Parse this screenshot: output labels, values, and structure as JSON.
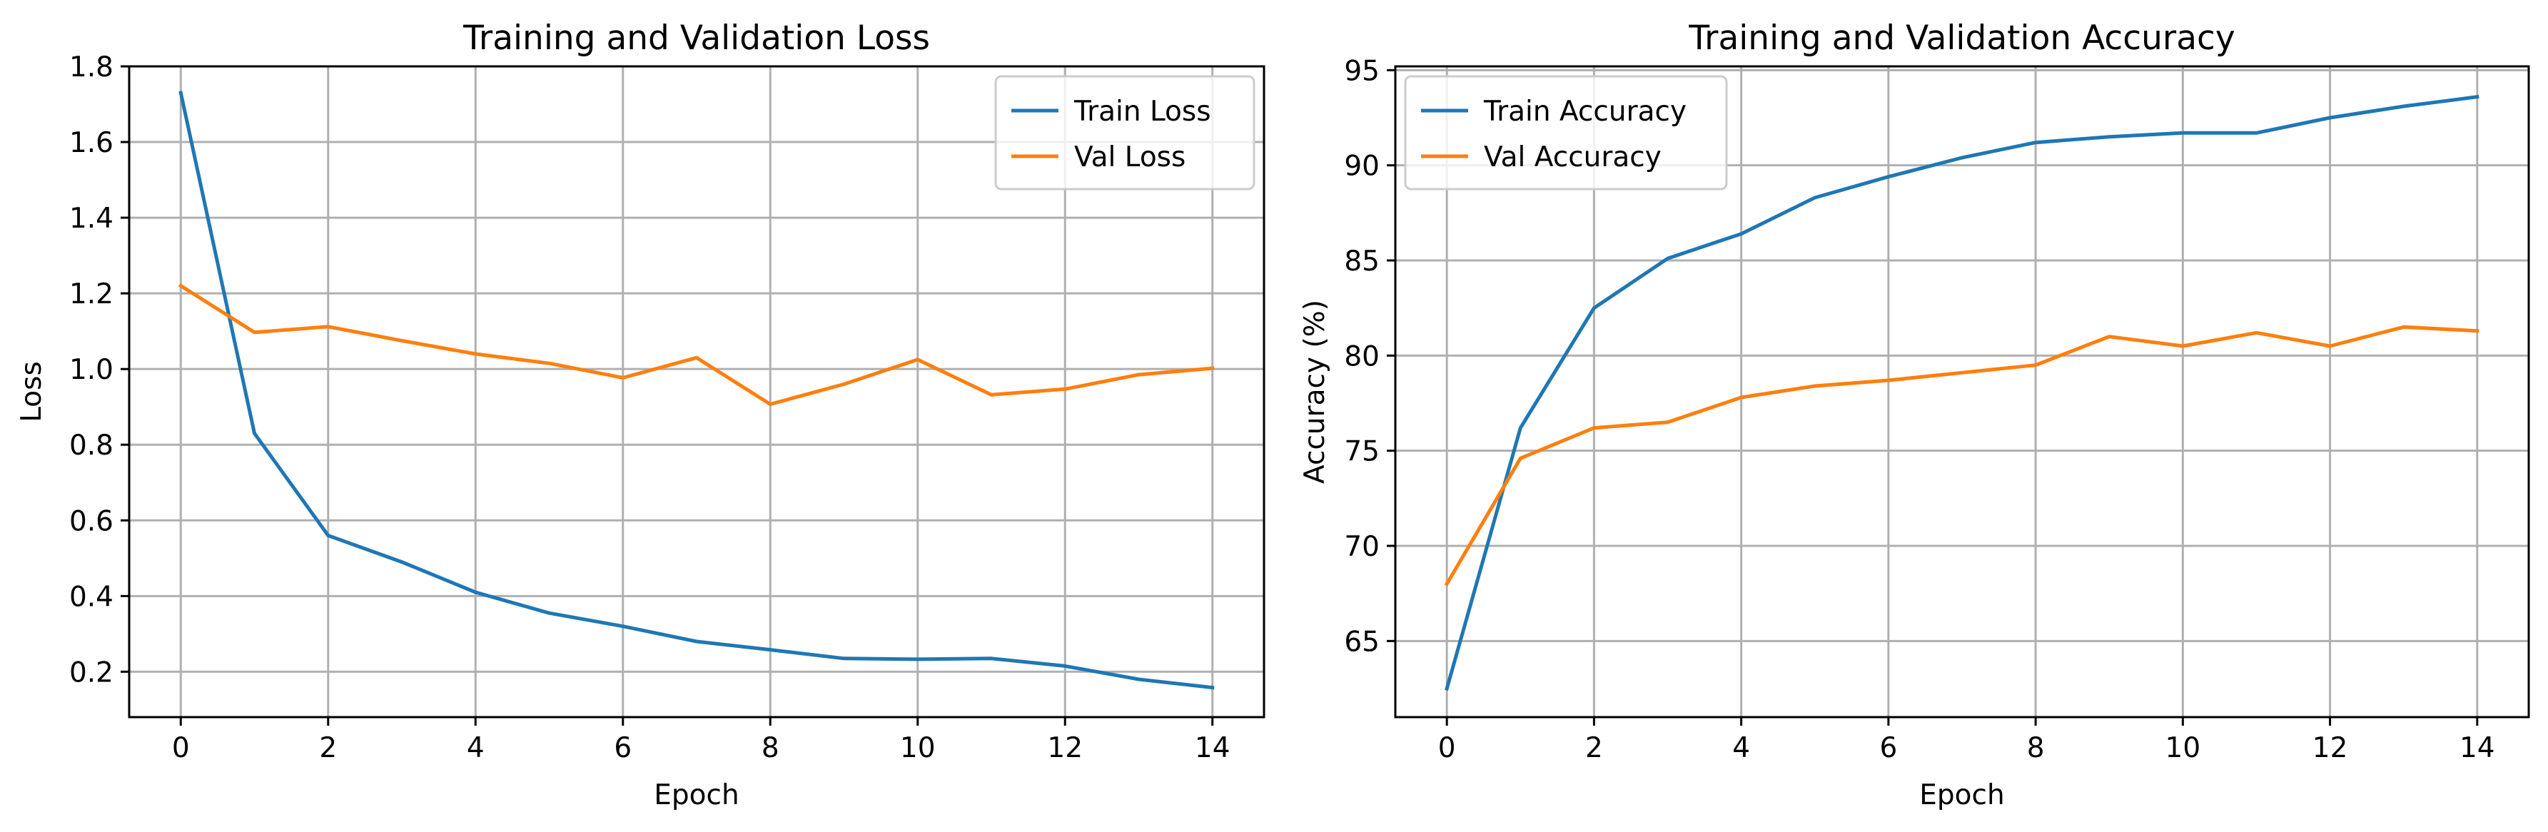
{
  "chart_data": [
    {
      "type": "line",
      "title": "Training and Validation Loss",
      "xlabel": "Epoch",
      "ylabel": "Loss",
      "xlim": [
        -0.7,
        14.7
      ],
      "ylim": [
        0.08,
        1.8
      ],
      "xticks": [
        0,
        2,
        4,
        6,
        8,
        10,
        12,
        14
      ],
      "yticks": [
        0.2,
        0.4,
        0.6,
        0.8,
        1.0,
        1.2,
        1.4,
        1.6,
        1.8
      ],
      "ytick_labels": [
        "0.2",
        "0.4",
        "0.6",
        "0.8",
        "1.0",
        "1.2",
        "1.4",
        "1.6",
        "1.8"
      ],
      "grid": true,
      "legend_position": "upper-right",
      "x": [
        0,
        1,
        2,
        3,
        4,
        5,
        6,
        7,
        8,
        9,
        10,
        11,
        12,
        13,
        14
      ],
      "series": [
        {
          "name": "Train Loss",
          "color": "#1f77b4",
          "values": [
            1.73,
            0.83,
            0.56,
            0.49,
            0.41,
            0.355,
            0.32,
            0.28,
            0.258,
            0.235,
            0.233,
            0.235,
            0.215,
            0.18,
            0.158
          ]
        },
        {
          "name": "Val Loss",
          "color": "#ff7f0e",
          "values": [
            1.22,
            1.097,
            1.112,
            1.075,
            1.04,
            1.015,
            0.977,
            1.03,
            0.907,
            0.96,
            1.025,
            0.932,
            0.947,
            0.985,
            1.002
          ]
        }
      ]
    },
    {
      "type": "line",
      "title": "Training and Validation Accuracy",
      "xlabel": "Epoch",
      "ylabel": "Accuracy (%)",
      "xlim": [
        -0.7,
        14.7
      ],
      "ylim": [
        61.0,
        95.2
      ],
      "xticks": [
        0,
        2,
        4,
        6,
        8,
        10,
        12,
        14
      ],
      "yticks": [
        65,
        70,
        75,
        80,
        85,
        90,
        95
      ],
      "ytick_labels": [
        "65",
        "70",
        "75",
        "80",
        "85",
        "90",
        "95"
      ],
      "grid": true,
      "legend_position": "upper-left",
      "x": [
        0,
        1,
        2,
        3,
        4,
        5,
        6,
        7,
        8,
        9,
        10,
        11,
        12,
        13,
        14
      ],
      "series": [
        {
          "name": "Train Accuracy",
          "color": "#1f77b4",
          "values": [
            62.5,
            76.2,
            82.5,
            85.1,
            86.4,
            88.3,
            89.4,
            90.4,
            91.2,
            91.5,
            91.7,
            91.7,
            92.5,
            93.1,
            93.6
          ]
        },
        {
          "name": "Val Accuracy",
          "color": "#ff7f0e",
          "values": [
            68.0,
            74.6,
            76.2,
            76.5,
            77.8,
            78.4,
            78.7,
            79.1,
            79.5,
            81.0,
            80.5,
            81.2,
            80.5,
            81.5,
            81.3
          ]
        }
      ]
    }
  ]
}
